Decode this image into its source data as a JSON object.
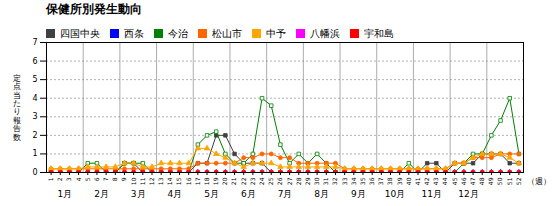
{
  "chart_data": {
    "type": "line",
    "title": "保健所別発生動向",
    "ylabel": "定\n点\n当\nた\nり\n報\n告\n数",
    "xlabel": "（週）",
    "x": [
      1,
      2,
      3,
      4,
      5,
      6,
      7,
      8,
      9,
      10,
      11,
      12,
      13,
      14,
      15,
      16,
      17,
      18,
      19,
      20,
      21,
      22,
      23,
      24,
      25,
      26,
      27,
      28,
      29,
      30,
      31,
      32,
      33,
      34,
      35,
      36,
      37,
      38,
      39,
      40,
      41,
      42,
      43,
      44,
      45,
      46,
      47,
      48,
      49,
      50,
      51,
      52
    ],
    "xlim": [
      0.5,
      52.5
    ],
    "xticks": [
      1,
      2,
      3,
      4,
      5,
      6,
      7,
      8,
      9,
      10,
      11,
      12,
      13,
      14,
      15,
      16,
      17,
      18,
      19,
      20,
      21,
      22,
      23,
      24,
      25,
      26,
      27,
      28,
      29,
      30,
      31,
      32,
      33,
      34,
      35,
      36,
      37,
      38,
      39,
      40,
      41,
      42,
      43,
      44,
      45,
      46,
      47,
      48,
      49,
      50,
      51,
      52
    ],
    "ylim": [
      0,
      7
    ],
    "yticks": [
      0,
      1,
      2,
      3,
      4,
      5,
      6,
      7
    ],
    "grid": true,
    "legend": "top",
    "annotations": [
      {
        "text": "1月",
        "x": [
          0.5,
          4.5
        ]
      },
      {
        "text": "2月",
        "x": [
          4.5,
          8.5
        ]
      },
      {
        "text": "3月",
        "x": [
          8.5,
          12.5
        ]
      },
      {
        "text": "4月",
        "x": [
          12.5,
          16.5
        ]
      },
      {
        "text": "5月",
        "x": [
          16.5,
          20.5
        ]
      },
      {
        "text": "6月",
        "x": [
          20.5,
          24.5
        ]
      },
      {
        "text": "7月",
        "x": [
          24.5,
          28.5
        ]
      },
      {
        "text": "8月",
        "x": [
          28.5,
          32.5
        ]
      },
      {
        "text": "9月",
        "x": [
          32.5,
          36.5
        ]
      },
      {
        "text": "10月",
        "x": [
          36.5,
          40.5
        ]
      },
      {
        "text": "11月",
        "x": [
          40.5,
          44.5
        ]
      },
      {
        "text": "12月",
        "x": [
          44.5,
          48.5
        ]
      }
    ],
    "series": [
      {
        "name": "四国中央",
        "color": "#404040",
        "marker": "square",
        "line_style": "solid",
        "values": [
          0,
          0,
          0,
          0,
          0,
          0,
          0,
          0,
          0.5,
          0.5,
          0,
          0,
          0,
          0,
          0,
          0,
          0.5,
          0.5,
          2,
          2,
          1,
          0.5,
          0.5,
          0.5,
          0,
          0,
          0,
          0,
          0,
          0,
          0,
          0,
          0,
          0,
          0,
          0,
          0,
          0,
          0,
          0,
          0,
          0.5,
          0.5,
          0,
          0.5,
          0.5,
          0.5,
          1,
          1,
          1,
          0.5,
          0.5
        ]
      },
      {
        "name": "西条",
        "color": "#0000FF",
        "marker": "triangle",
        "line_style": "solid",
        "values": [
          0,
          0,
          0,
          0,
          0,
          0,
          0,
          0,
          0,
          0,
          0,
          0,
          0,
          0,
          0,
          0,
          0,
          0,
          0,
          0,
          0,
          0,
          0,
          0,
          0,
          0,
          0,
          0,
          0,
          0,
          0,
          0,
          0,
          0,
          0,
          0,
          0,
          0,
          0,
          0,
          0,
          0,
          0,
          0,
          0,
          0,
          0,
          0,
          0,
          0,
          0,
          0
        ]
      },
      {
        "name": "今治",
        "color": "#008000",
        "marker": "square-hollow",
        "line_style": "solid",
        "values": [
          0,
          0,
          0,
          0,
          0.5,
          0.5,
          0,
          0,
          0.5,
          0.5,
          0.5,
          0,
          0,
          0,
          0,
          0,
          1.5,
          2,
          2.2,
          1,
          0.5,
          0.5,
          1,
          4,
          3.6,
          1.5,
          0.5,
          1,
          0.5,
          1,
          0.5,
          0,
          0,
          0,
          0,
          0,
          0,
          0,
          0,
          0.5,
          0,
          0,
          0,
          0,
          0,
          0.5,
          1,
          1,
          2,
          2.8,
          4,
          1
        ]
      },
      {
        "name": "松山市",
        "color": "#FF6600",
        "marker": "circle",
        "line_style": "solid",
        "values": [
          0.2,
          0.2,
          0.2,
          0.2,
          0.2,
          0.2,
          0.2,
          0.2,
          0.2,
          0.2,
          0.2,
          0.2,
          0.2,
          0.2,
          0.2,
          0.2,
          0.5,
          0.5,
          0.5,
          0.5,
          0.5,
          0.8,
          0.8,
          1,
          1,
          0.8,
          0.8,
          0.5,
          0.5,
          0.5,
          0.5,
          0.5,
          0.2,
          0.2,
          0.2,
          0.2,
          0.2,
          0.2,
          0.2,
          0.2,
          0.2,
          0.2,
          0.2,
          0.2,
          0.5,
          0.5,
          0.8,
          0.8,
          0.8,
          1,
          1,
          1
        ]
      },
      {
        "name": "中予",
        "color": "#FFA500",
        "marker": "triangle",
        "line_style": "solid",
        "values": [
          0.2,
          0.2,
          0.2,
          0.2,
          0.3,
          0.3,
          0.3,
          0.3,
          0.5,
          0.5,
          0.3,
          0.3,
          0.5,
          0.5,
          0.5,
          0.5,
          1.3,
          1.3,
          1,
          0.8,
          0.5,
          0.3,
          0.5,
          0.5,
          0.5,
          0.3,
          0.3,
          0.3,
          0.3,
          0.3,
          0.3,
          0.3,
          0.2,
          0.2,
          0.2,
          0.2,
          0.2,
          0.2,
          0.2,
          0.2,
          0.2,
          0.2,
          0.2,
          0.2,
          0.5,
          0.5,
          0.8,
          1,
          1,
          1,
          0.8,
          0.5
        ]
      },
      {
        "name": "八幡浜",
        "color": "#FF00FF",
        "marker": "circle-hollow",
        "line_style": "solid",
        "values": [
          0,
          0,
          0,
          0,
          0,
          0,
          0,
          0,
          0,
          0,
          0,
          0,
          0,
          0,
          0,
          0,
          0,
          0,
          0,
          0,
          0,
          0,
          0,
          0,
          0,
          0,
          0,
          0,
          0,
          0,
          0,
          0,
          0,
          0,
          0,
          0,
          0,
          0,
          0,
          0,
          0,
          0,
          0,
          0,
          0,
          0,
          0,
          0,
          0,
          0,
          0,
          0
        ]
      },
      {
        "name": "宇和島",
        "color": "#FF0000",
        "marker": "square",
        "line_style": "solid",
        "values": [
          0,
          0,
          0,
          0,
          0,
          0,
          0,
          0,
          0,
          0,
          0,
          0,
          0,
          0,
          0,
          0,
          0,
          0,
          0,
          0,
          0,
          0,
          0,
          0,
          0,
          0,
          0,
          0,
          0,
          0,
          0,
          0,
          0,
          0,
          0,
          0,
          0,
          0,
          0,
          0,
          0,
          0,
          0,
          0,
          0,
          0,
          0,
          0,
          0,
          0,
          0,
          0
        ]
      }
    ]
  }
}
